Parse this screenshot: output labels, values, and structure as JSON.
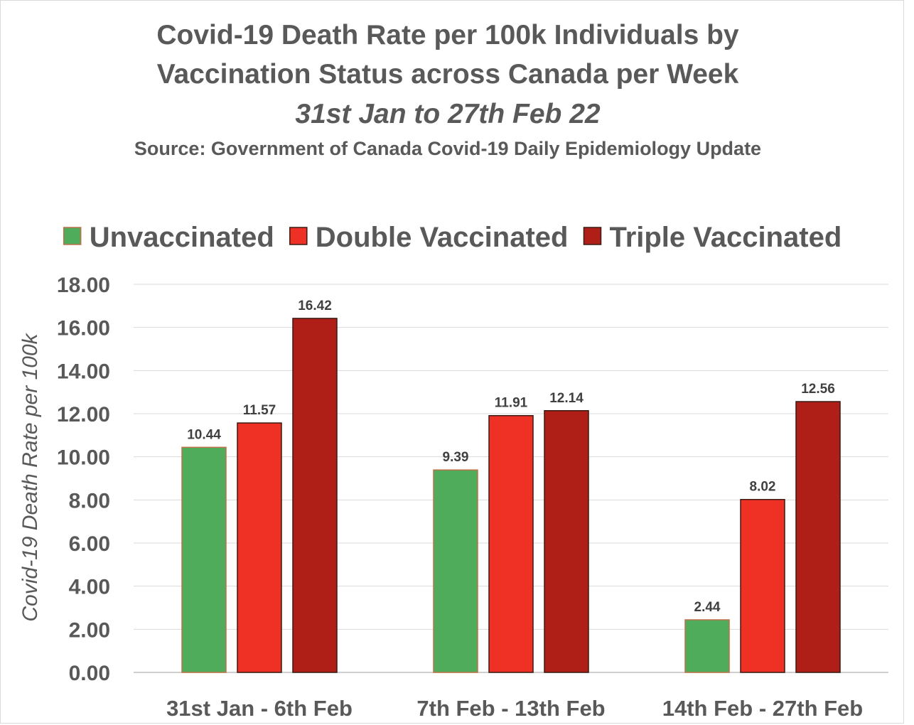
{
  "chart_data": {
    "type": "bar",
    "title": "Covid-19 Death Rate per 100k Individuals by",
    "title_line2": "Vaccination Status across Canada per Week",
    "subtitle": "31st Jan to 27th Feb 22",
    "source": "Source: Government of Canada  Covid-19 Daily Epidemiology Update",
    "ylabel": "Covid-19 Death Rate per 100k",
    "xlabel": "",
    "ylim": [
      0,
      18
    ],
    "yticks": [
      "0.00",
      "2.00",
      "4.00",
      "6.00",
      "8.00",
      "10.00",
      "12.00",
      "14.00",
      "16.00",
      "18.00"
    ],
    "grid": true,
    "legend_position": "top",
    "categories": [
      "31st Jan - 6th Feb",
      "7th Feb - 13th Feb",
      "14th Feb - 27th Feb"
    ],
    "series": [
      {
        "name": "Unvaccinated",
        "color": "#4eac5b",
        "values": [
          10.44,
          9.39,
          2.44
        ],
        "labels": [
          "10.44",
          "9.39",
          "2.44"
        ]
      },
      {
        "name": "Double Vaccinated",
        "color": "#ee3124",
        "values": [
          11.57,
          11.91,
          8.02
        ],
        "labels": [
          "11.57",
          "11.91",
          "8.02"
        ]
      },
      {
        "name": "Triple Vaccinated",
        "color": "#b01f17",
        "values": [
          16.42,
          12.14,
          12.56
        ],
        "labels": [
          "16.42",
          "12.14",
          "12.56"
        ]
      }
    ]
  }
}
